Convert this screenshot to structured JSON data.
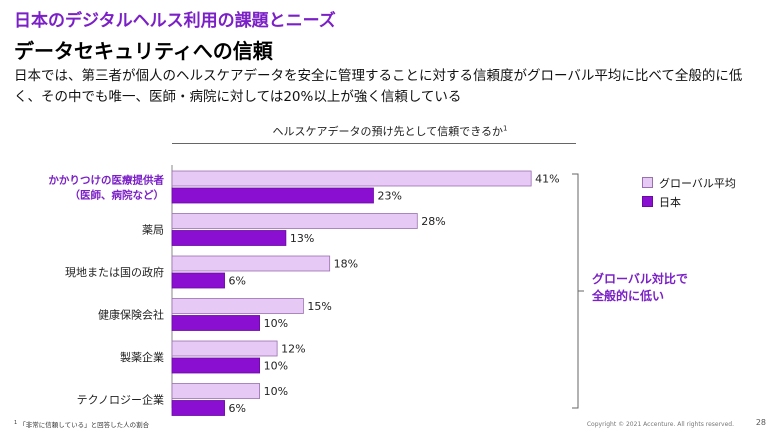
{
  "header": {
    "kicker": "日本のデジタルヘルス利用の課題とニーズ",
    "title": "データセキュリティへの信頼",
    "description": "日本では、第三者が個人のヘルスケアデータを安全に管理することに対する信頼度がグローバル平均に比べて全般的に低く、その中でも唯一、医師・病院に対しては20%以上が強く信頼している"
  },
  "chart_data": {
    "type": "bar",
    "orientation": "horizontal",
    "title": "ヘルスケアデータの預け先として信頼できるか",
    "title_footnote_mark": "1",
    "categories": [
      [
        "かかりつけの医療提供者",
        "（医師、病院など）"
      ],
      [
        "薬局"
      ],
      [
        "現地または国の政府"
      ],
      [
        "健康保険会社"
      ],
      [
        "製薬企業"
      ],
      [
        "テクノロジー企業"
      ]
    ],
    "highlight_category_index": 0,
    "series": [
      {
        "name": "グローバル平均",
        "values": [
          41,
          28,
          18,
          15,
          12,
          10
        ],
        "color": "#e6c9f5",
        "stroke": "#9a6fb0"
      },
      {
        "name": "日本",
        "values": [
          23,
          13,
          6,
          10,
          10,
          6
        ],
        "color": "#8a0fd0",
        "stroke": "#6a0aa5"
      }
    ],
    "value_suffix": "%",
    "legend_position": "right",
    "grid": false
  },
  "callout": {
    "line1": "グローバル対比で",
    "line2": "全般的に低い",
    "color": "#7b1fc7"
  },
  "footer": {
    "footnote_mark": "1",
    "footnote": "「非常に信頼している」と回答した人の割合",
    "copyright": "Copyright © 2021 Accenture. All rights reserved.",
    "page": "28"
  },
  "colors": {
    "accent": "#7b1fc7",
    "global_bar": "#e6c9f5",
    "japan_bar": "#8a0fd0"
  }
}
